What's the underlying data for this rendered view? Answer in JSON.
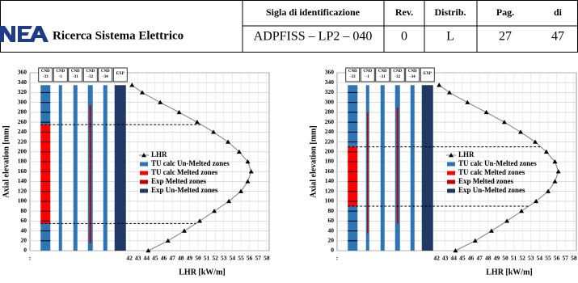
{
  "header": {
    "org": "Ricerca Sistema Elettrico",
    "id_label": "Sigla di identificazione",
    "id_value": "ADPFISS – LP2 – 040",
    "rev_label": "Rev.",
    "rev_value": "0",
    "distrib_label": "Distrib.",
    "distrib_value": "L",
    "page_label": "Pag.",
    "page_value": "27",
    "of_label": "di",
    "of_value": "47"
  },
  "chart_data": [
    {
      "type": "combo",
      "y_label": "Axial elevation [mm]",
      "x_label": "LHR [kW/m]",
      "x_left_label": ":",
      "ylim": [
        0,
        360
      ],
      "yticks": [
        0,
        20,
        40,
        60,
        80,
        100,
        120,
        140,
        160,
        180,
        200,
        220,
        240,
        260,
        280,
        300,
        320,
        340,
        360
      ],
      "xlim": [
        30.4,
        58.3
      ],
      "xticks": [
        42,
        43,
        44,
        45,
        46,
        47,
        48,
        49,
        50,
        51,
        52,
        53,
        54,
        55,
        56,
        57,
        58
      ],
      "grid": true,
      "categories": [
        [
          "CND",
          "-33"
        ],
        [
          "CND",
          "-1"
        ],
        [
          "CND",
          "-31"
        ],
        [
          "CND",
          "-32"
        ],
        [
          "CND",
          "-34"
        ],
        [
          "EXP"
        ]
      ],
      "series": [
        {
          "name": "LHR",
          "color": "#7f7f7f",
          "x": [
            44.2,
            46.5,
            48.4,
            50.2,
            51.9,
            53.6,
            55.0,
            55.8,
            56.2,
            55.8,
            54.8,
            53.5,
            51.8,
            49.9,
            47.8,
            45.6,
            43.5,
            42.3
          ],
          "y": [
            0,
            20,
            40,
            60,
            80,
            100,
            120,
            140,
            160,
            180,
            200,
            220,
            240,
            260,
            280,
            300,
            320,
            335
          ]
        },
        {
          "name": "TU calc Un-Melted zones",
          "color": "#2e75b6",
          "ranges": [
            [
              [
                0,
                55
              ],
              [
                255,
                335
              ]
            ],
            [
              [
                0,
                335
              ]
            ],
            [
              [
                0,
                335
              ]
            ],
            [
              [
                0,
                335
              ]
            ],
            [
              [
                0,
                335
              ]
            ],
            null
          ]
        },
        {
          "name": "TU calc Melted zones",
          "color": "#ff0000",
          "ranges": [
            [
              [
                55,
                255
              ]
            ],
            null,
            null,
            null,
            null,
            null
          ]
        },
        {
          "name": "Exp Melted zones",
          "color": "#c00000",
          "ranges": [
            null,
            null,
            null,
            [
              [
                15,
                295
              ]
            ],
            null,
            null
          ]
        },
        {
          "name": "Exp Un-Melted zones",
          "color": "#1f3864",
          "ranges": [
            null,
            null,
            null,
            null,
            null,
            [
              [
                0,
                335
              ]
            ]
          ]
        }
      ]
    },
    {
      "type": "combo",
      "y_label": "Axial elevation [mm]",
      "x_label": "LHR [kW/m]",
      "x_left_label": ":",
      "ylim": [
        0,
        360
      ],
      "yticks": [
        0,
        20,
        40,
        60,
        80,
        100,
        120,
        140,
        160,
        180,
        200,
        220,
        240,
        260,
        280,
        300,
        320,
        340,
        360
      ],
      "xlim": [
        30.4,
        58.3
      ],
      "xticks": [
        42,
        43,
        44,
        45,
        46,
        47,
        48,
        49,
        50,
        51,
        52,
        53,
        54,
        55,
        56,
        57,
        58
      ],
      "grid": true,
      "categories": [
        [
          "CND",
          "-33"
        ],
        [
          "CND",
          "-1"
        ],
        [
          "CND",
          "-31"
        ],
        [
          "CND",
          "-32"
        ],
        [
          "CND",
          "-34"
        ],
        [
          "EXP"
        ]
      ],
      "series": [
        {
          "name": "LHR",
          "color": "#7f7f7f",
          "x": [
            44.2,
            46.5,
            48.4,
            50.2,
            51.9,
            53.6,
            55.0,
            55.8,
            56.2,
            55.8,
            54.8,
            53.5,
            51.8,
            49.9,
            47.8,
            45.6,
            43.5,
            42.3
          ],
          "y": [
            0,
            20,
            40,
            60,
            80,
            100,
            120,
            140,
            160,
            180,
            200,
            220,
            240,
            260,
            280,
            300,
            320,
            335
          ]
        },
        {
          "name": "TU calc Un-Melted zones",
          "color": "#2e75b6",
          "ranges": [
            [
              [
                0,
                90
              ],
              [
                210,
                335
              ]
            ],
            [
              [
                0,
                335
              ]
            ],
            [
              [
                0,
                335
              ]
            ],
            [
              [
                0,
                335
              ]
            ],
            [
              [
                0,
                335
              ]
            ],
            null
          ]
        },
        {
          "name": "TU calc Melted zones",
          "color": "#ff0000",
          "ranges": [
            [
              [
                90,
                210
              ]
            ],
            null,
            null,
            null,
            null,
            null
          ]
        },
        {
          "name": "Exp Melted zones",
          "color": "#c00000",
          "ranges": [
            null,
            [
              [
                35,
                280
              ]
            ],
            null,
            [
              [
                55,
                290
              ]
            ],
            null,
            null
          ]
        },
        {
          "name": "Exp Un-Melted zones",
          "color": "#1f3864",
          "ranges": [
            null,
            null,
            null,
            null,
            null,
            [
              [
                0,
                335
              ]
            ]
          ]
        }
      ]
    }
  ]
}
